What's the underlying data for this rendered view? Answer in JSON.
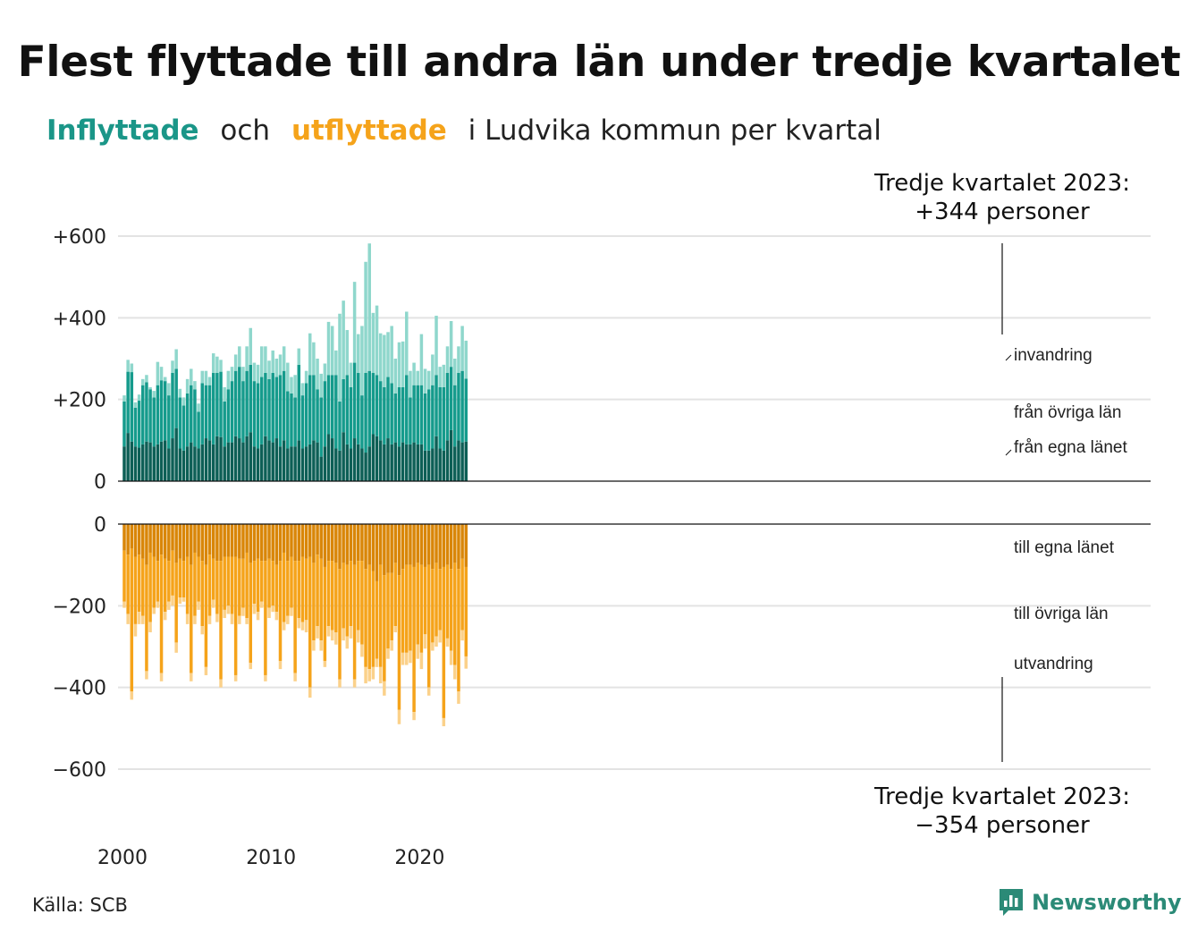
{
  "title": "Flest flyttade till andra län under tredje kvartalet",
  "subtitle": {
    "in_word": "Inflyttade",
    "and_word": "och",
    "out_word": "utflyttade",
    "rest": "i Ludvika  kommun  per  kvartal"
  },
  "source": "Källa: SCB",
  "brand": "Newsworthy",
  "colors": {
    "in_own": "#0d5f56",
    "in_other": "#159b8c",
    "in_immig": "#8fd7cc",
    "out_own": "#d98608",
    "out_other": "#f5a31a",
    "out_emig": "#fbd18a",
    "grid": "#e3e3e3"
  },
  "chart_data": {
    "type": "bar",
    "stacked": true,
    "x_start": "2000 Q1",
    "x_end": "2023 Q3",
    "x_ticks": [
      "2000",
      "2010",
      "2020"
    ],
    "y_ticks_top": [
      "+600",
      "+400",
      "+200",
      "0"
    ],
    "y_ticks_bottom": [
      "0",
      "−200",
      "−400",
      "−600"
    ],
    "ylim_top": [
      0,
      600
    ],
    "ylim_bottom": [
      -600,
      0
    ],
    "series_labels": {
      "in_immig": "invandring",
      "in_other": "från övriga län",
      "in_own": "från egna länet",
      "out_own": "till egna länet",
      "out_other": "till övriga län",
      "out_emig": "utvandring"
    },
    "annotation_top": {
      "line1": "Tredje kvartalet 2023:",
      "line2": "+344 personer"
    },
    "annotation_bottom": {
      "line1": "Tredje kvartalet 2023:",
      "line2": "−354 personer"
    },
    "inflow_total": [
      210,
      297,
      288,
      193,
      212,
      250,
      260,
      230,
      221,
      292,
      280,
      255,
      240,
      295,
      323,
      226,
      205,
      250,
      275,
      245,
      190,
      270,
      270,
      255,
      313,
      305,
      297,
      230,
      270,
      280,
      310,
      330,
      280,
      330,
      375,
      290,
      285,
      330,
      330,
      295,
      320,
      300,
      310,
      330,
      290,
      255,
      260,
      325,
      240,
      270,
      362,
      340,
      300,
      263,
      288,
      390,
      380,
      320,
      410,
      442,
      370,
      290,
      488,
      360,
      380,
      537,
      582,
      412,
      430,
      362,
      358,
      365,
      380,
      300,
      340,
      342,
      415,
      270,
      290,
      270,
      360,
      275,
      270,
      310,
      405,
      280,
      285,
      330,
      392,
      300,
      330,
      380,
      344
    ],
    "inflow_own": [
      85,
      118,
      97,
      85,
      82,
      90,
      97,
      95,
      85,
      90,
      97,
      100,
      80,
      105,
      130,
      80,
      75,
      85,
      95,
      85,
      80,
      90,
      105,
      100,
      90,
      110,
      108,
      85,
      95,
      95,
      110,
      105,
      95,
      110,
      120,
      85,
      80,
      90,
      110,
      100,
      95,
      105,
      85,
      100,
      80,
      85,
      85,
      100,
      80,
      85,
      90,
      100,
      95,
      60,
      85,
      115,
      105,
      80,
      75,
      120,
      90,
      80,
      105,
      90,
      80,
      70,
      85,
      115,
      110,
      100,
      90,
      105,
      90,
      95,
      85,
      95,
      90,
      90,
      95,
      90,
      90,
      75,
      75,
      80,
      110,
      80,
      75,
      100,
      125,
      85,
      100,
      95,
      97
    ],
    "inflow_other": [
      110,
      150,
      170,
      95,
      115,
      145,
      145,
      130,
      120,
      145,
      150,
      145,
      130,
      160,
      145,
      125,
      110,
      130,
      140,
      140,
      90,
      150,
      130,
      135,
      175,
      155,
      160,
      110,
      130,
      150,
      160,
      175,
      150,
      160,
      165,
      160,
      160,
      165,
      155,
      150,
      170,
      150,
      175,
      170,
      140,
      130,
      120,
      185,
      130,
      155,
      170,
      160,
      130,
      145,
      160,
      145,
      155,
      180,
      120,
      130,
      170,
      150,
      185,
      175,
      130,
      195,
      185,
      150,
      150,
      145,
      140,
      150,
      150,
      120,
      145,
      135,
      170,
      115,
      140,
      145,
      145,
      140,
      150,
      155,
      150,
      150,
      155,
      165,
      155,
      150,
      165,
      175,
      154
    ],
    "outflow_total": [
      -205,
      -245,
      -430,
      -275,
      -245,
      -245,
      -380,
      -265,
      -220,
      -205,
      -385,
      -235,
      -210,
      -200,
      -315,
      -195,
      -190,
      -245,
      -385,
      -245,
      -210,
      -270,
      -370,
      -245,
      -205,
      -240,
      -400,
      -230,
      -220,
      -245,
      -385,
      -245,
      -225,
      -245,
      -355,
      -220,
      -235,
      -205,
      -385,
      -230,
      -215,
      -235,
      -355,
      -260,
      -245,
      -225,
      -385,
      -255,
      -260,
      -265,
      -425,
      -310,
      -280,
      -310,
      -350,
      -275,
      -285,
      -295,
      -400,
      -285,
      -305,
      -280,
      -400,
      -290,
      -325,
      -390,
      -385,
      -380,
      -350,
      -390,
      -420,
      -330,
      -310,
      -265,
      -490,
      -345,
      -345,
      -340,
      -480,
      -330,
      -355,
      -305,
      -420,
      -310,
      -300,
      -290,
      -495,
      -300,
      -345,
      -380,
      -440,
      -285,
      -354
    ],
    "outflow_own": [
      -65,
      -75,
      -60,
      -80,
      -75,
      -85,
      -100,
      -70,
      -80,
      -90,
      -75,
      -85,
      -90,
      -65,
      -95,
      -85,
      -90,
      -80,
      -100,
      -70,
      -80,
      -90,
      -100,
      -75,
      -85,
      -90,
      -90,
      -80,
      -80,
      -80,
      -80,
      -85,
      -85,
      -70,
      -95,
      -90,
      -85,
      -90,
      -90,
      -85,
      -90,
      -100,
      -90,
      -70,
      -90,
      -80,
      -90,
      -90,
      -80,
      -85,
      -80,
      -95,
      -75,
      -85,
      -105,
      -90,
      -90,
      -95,
      -110,
      -95,
      -100,
      -90,
      -100,
      -90,
      -90,
      -110,
      -100,
      -115,
      -140,
      -100,
      -125,
      -120,
      -120,
      -95,
      -125,
      -110,
      -100,
      -100,
      -105,
      -95,
      -100,
      -105,
      -100,
      -110,
      -95,
      -110,
      -105,
      -100,
      -110,
      -95,
      -110,
      -85,
      -105
    ],
    "outflow_other": [
      -125,
      -145,
      -350,
      -165,
      -140,
      -140,
      -260,
      -170,
      -125,
      -100,
      -290,
      -130,
      -100,
      -110,
      -195,
      -95,
      -90,
      -140,
      -265,
      -155,
      -110,
      -160,
      -250,
      -150,
      -100,
      -130,
      -290,
      -130,
      -120,
      -140,
      -290,
      -140,
      -120,
      -160,
      -245,
      -105,
      -130,
      -100,
      -280,
      -120,
      -110,
      -115,
      -245,
      -170,
      -135,
      -125,
      -275,
      -140,
      -160,
      -150,
      -320,
      -190,
      -175,
      -200,
      -230,
      -160,
      -170,
      -170,
      -270,
      -160,
      -175,
      -160,
      -280,
      -170,
      -205,
      -240,
      -255,
      -235,
      -190,
      -250,
      -260,
      -185,
      -165,
      -155,
      -330,
      -205,
      -215,
      -210,
      -355,
      -200,
      -215,
      -165,
      -300,
      -180,
      -180,
      -150,
      -370,
      -180,
      -200,
      -250,
      -300,
      -175,
      -219
    ]
  }
}
